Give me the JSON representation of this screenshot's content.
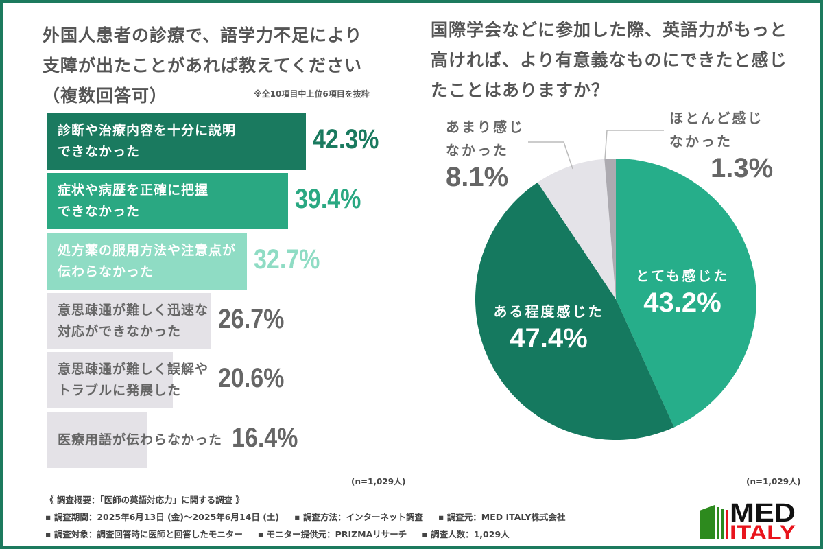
{
  "left": {
    "title_lines": [
      "外国人患者の診療で、語学力不足により",
      "支障が出たことがあれば教えてください",
      "（複数回答可）"
    ],
    "note": "※全10項目中上位6項目を抜粋",
    "n": "(n=1,029人)"
  },
  "right": {
    "title_lines": [
      "国際学会などに参加した際、英語力がもっと",
      "高ければ、より有意義なものにできたと感じ",
      "たことはありますか？"
    ],
    "n": "(n=1,029人)"
  },
  "chart_data": [
    {
      "type": "bar",
      "orientation": "horizontal",
      "categories": [
        "診断や治療内容を十分に説明できなかった",
        "症状や病歴を正確に把握できなかった",
        "処方薬の服用方法や注意点が伝わらなかった",
        "意思疎通が難しく迅速な対応ができなかった",
        "意思疎通が難しく誤解やトラブルに発展した",
        "医療用語が伝わらなかった"
      ],
      "label_lines": [
        [
          "診断や治療内容を十分に説明",
          "できなかった"
        ],
        [
          "症状や病歴を正確に把握",
          "できなかった"
        ],
        [
          "処方薬の服用方法や注意点が",
          "伝わらなかった"
        ],
        [
          "意思疎通が難しく迅速な",
          "対応ができなかった"
        ],
        [
          "意思疎通が難しく誤解や",
          "トラブルに発展した"
        ],
        [
          "医療用語が伝わらなかった"
        ]
      ],
      "values": [
        42.3,
        39.4,
        32.7,
        26.7,
        20.6,
        16.4
      ],
      "value_labels": [
        "42.3%",
        "39.4%",
        "32.7%",
        "26.7%",
        "20.6%",
        "16.4%"
      ],
      "unit": "%",
      "bar_colors": [
        "#1a7a5f",
        "#2aa882",
        "#8fdcc4",
        "#e4e2e7",
        "#e4e2e7",
        "#e4e2e7"
      ],
      "label_colors": [
        "#ffffff",
        "#ffffff",
        "#ffffff",
        "#666666",
        "#666666",
        "#666666"
      ],
      "value_colors": [
        "#1a7a5f",
        "#2aa882",
        "#8fdcc4",
        "#666666",
        "#666666",
        "#666666"
      ]
    },
    {
      "type": "pie",
      "start": "top",
      "direction": "clockwise",
      "slices": [
        {
          "label": "とても感じた",
          "value": 43.2,
          "value_label": "43.2%",
          "color": "#26ae8a"
        },
        {
          "label": "ある程度感じた",
          "value": 47.4,
          "value_label": "47.4%",
          "color": "#15795f"
        },
        {
          "label": "あまり感じなかった",
          "label_lines": [
            "あまり感じ",
            "なかった"
          ],
          "value": 8.1,
          "value_label": "8.1%",
          "color": "#e4e3e8"
        },
        {
          "label": "ほとんど感じなかった",
          "label_lines": [
            "ほとんど感じ",
            "なかった"
          ],
          "value": 1.3,
          "value_label": "1.3%",
          "color": "#acaab0"
        }
      ]
    }
  ],
  "footer": {
    "heading": "《 調査概要：「医師の英語対応力」に関する調査 》",
    "items": [
      "▪ 調査期間：2025年6月13日 (金)～2025年6月14日 (土)",
      "▪ 調査方法：インターネット調査",
      "▪ 調査元：MED ITALY株式会社",
      "▪ 調査対象：調査回答時に医師と回答したモニター",
      "▪ モニター提供元：PRIZMAリサーチ",
      "▪ 調査人数：1,029人"
    ]
  },
  "logo": {
    "line1": "MED",
    "line2": "ITALY",
    "colors": {
      "green": "#2d8a1e",
      "red": "#e8141c",
      "black": "#111111"
    }
  },
  "colors": {
    "frame": "#1c7a5e"
  }
}
